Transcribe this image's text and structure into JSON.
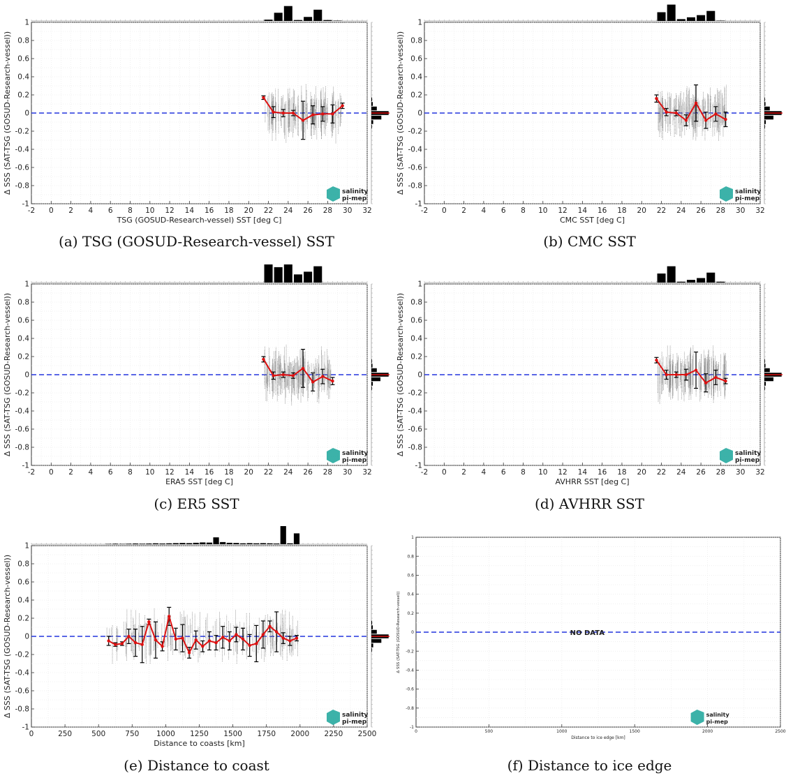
{
  "figures": [
    {
      "caption": "(a) TSG (GOSUD-Research-vessel) SST"
    },
    {
      "caption": "(b) CMC SST"
    },
    {
      "caption": "(c) ER5 SST"
    },
    {
      "caption": "(d) AVHRR SST"
    },
    {
      "caption": "(e) Distance to coast"
    },
    {
      "caption": "(f) Distance to ice edge"
    }
  ],
  "logo": {
    "line1": "salinity",
    "line2": "pi-mep",
    "color": "#1aa59a"
  },
  "colors": {
    "zero_line": "#2233dd",
    "mean_line": "#dd1111",
    "scatter": "#777777",
    "bars": "#000000"
  },
  "chart_data": [
    {
      "type": "scatter",
      "xlabel": "TSG (GOSUD-Research-vessel) SST [deg C]",
      "ylabel": "Δ SSS (SAT-TSG (GOSUD-Research-vessel))",
      "xlim": [
        -2,
        32
      ],
      "ylim": [
        -1,
        1
      ],
      "xticks": [
        -2,
        0,
        2,
        4,
        6,
        8,
        10,
        12,
        14,
        16,
        18,
        20,
        22,
        24,
        26,
        28,
        30,
        32
      ],
      "yticks": [
        -1,
        -0.8,
        -0.6,
        -0.4,
        -0.2,
        0,
        0.2,
        0.4,
        0.6,
        0.8,
        1
      ],
      "scatter_x": [
        21.6,
        29.4
      ],
      "scatter_y": [
        -0.35,
        0.42
      ],
      "mean_x": [
        21.5,
        22.5,
        23.5,
        24.5,
        25.5,
        26.5,
        27.5,
        28.5,
        29.5
      ],
      "mean_y": [
        0.17,
        0.01,
        0.0,
        0.0,
        -0.08,
        -0.02,
        -0.01,
        -0.01,
        0.08
      ],
      "err": [
        0.02,
        0.06,
        0.04,
        0.03,
        0.21,
        0.1,
        0.08,
        0.1,
        0.03
      ],
      "top_hist": [
        0.07,
        0.45,
        0.82,
        0.05,
        0.22,
        0.62,
        0.05,
        0.02
      ],
      "top_hist_start": 22,
      "top_hist_step": 1,
      "side_hist": [
        0.04,
        0.08,
        0.3,
        0.95,
        0.55,
        0.1,
        0.03
      ]
    },
    {
      "type": "scatter",
      "xlabel": "CMC SST [deg C]",
      "ylabel": "Δ SSS (SAT-TSG (GOSUD-Research-vessel))",
      "xlim": [
        -2,
        32
      ],
      "ylim": [
        -1,
        1
      ],
      "xticks": [
        -2,
        0,
        2,
        4,
        6,
        8,
        10,
        12,
        14,
        16,
        18,
        20,
        22,
        24,
        26,
        28,
        30,
        32
      ],
      "yticks": [
        -1,
        -0.8,
        -0.6,
        -0.4,
        -0.2,
        0,
        0.2,
        0.4,
        0.6,
        0.8,
        1
      ],
      "scatter_x": [
        21.6,
        28.6
      ],
      "scatter_y": [
        -0.35,
        0.43
      ],
      "mean_x": [
        21.5,
        22.5,
        23.5,
        24.5,
        25.5,
        26.5,
        27.5,
        28.5
      ],
      "mean_y": [
        0.16,
        0.01,
        0.0,
        -0.08,
        0.11,
        -0.08,
        -0.01,
        -0.07
      ],
      "err": [
        0.04,
        0.04,
        0.03,
        0.06,
        0.2,
        0.09,
        0.08,
        0.08
      ],
      "top_hist": [
        0.48,
        0.9,
        0.1,
        0.2,
        0.32,
        0.55,
        0.02
      ],
      "top_hist_start": 22,
      "top_hist_step": 1,
      "side_hist": [
        0.03,
        0.06,
        0.3,
        0.95,
        0.5,
        0.08,
        0.03
      ]
    },
    {
      "type": "scatter",
      "xlabel": "ERA5 SST [deg C]",
      "ylabel": "Δ SSS (SAT-TSG (GOSUD-Research-vessel))",
      "xlim": [
        -2,
        32
      ],
      "ylim": [
        -1,
        1
      ],
      "xticks": [
        -2,
        0,
        2,
        4,
        6,
        8,
        10,
        12,
        14,
        16,
        18,
        20,
        22,
        24,
        26,
        28,
        30,
        32
      ],
      "yticks": [
        -1,
        -0.8,
        -0.6,
        -0.4,
        -0.2,
        0,
        0.2,
        0.4,
        0.6,
        0.8,
        1
      ],
      "scatter_x": [
        21.6,
        28.4
      ],
      "scatter_y": [
        -0.35,
        0.43
      ],
      "mean_x": [
        21.5,
        22.5,
        23.5,
        24.5,
        25.5,
        26.5,
        27.5,
        28.5
      ],
      "mean_y": [
        0.17,
        -0.01,
        0.0,
        -0.01,
        0.07,
        -0.08,
        -0.02,
        -0.07
      ],
      "err": [
        0.03,
        0.04,
        0.03,
        0.03,
        0.21,
        0.1,
        0.08,
        0.04
      ],
      "top_hist": [
        1.0,
        0.85,
        1.0,
        0.45,
        0.6,
        0.9
      ],
      "top_hist_start": 22,
      "top_hist_step": 1,
      "side_hist": [
        0.03,
        0.06,
        0.3,
        0.95,
        0.5,
        0.08,
        0.03
      ]
    },
    {
      "type": "scatter",
      "xlabel": "AVHRR SST [deg C]",
      "ylabel": "Δ SSS (SAT-TSG (GOSUD-Research-vessel))",
      "xlim": [
        -2,
        32
      ],
      "ylim": [
        -1,
        1
      ],
      "xticks": [
        -2,
        0,
        2,
        4,
        6,
        8,
        10,
        12,
        14,
        16,
        18,
        20,
        22,
        24,
        26,
        28,
        30,
        32
      ],
      "yticks": [
        -1,
        -0.8,
        -0.6,
        -0.4,
        -0.2,
        0,
        0.2,
        0.4,
        0.6,
        0.8,
        1
      ],
      "scatter_x": [
        21.6,
        28.6
      ],
      "scatter_y": [
        -0.36,
        0.43
      ],
      "mean_x": [
        21.5,
        22.5,
        23.5,
        24.5,
        25.5,
        26.5,
        27.5,
        28.5
      ],
      "mean_y": [
        0.16,
        0.0,
        0.0,
        0.0,
        0.05,
        -0.09,
        -0.03,
        -0.07
      ],
      "err": [
        0.03,
        0.05,
        0.03,
        0.06,
        0.2,
        0.1,
        0.08,
        0.03
      ],
      "top_hist": [
        0.5,
        0.9,
        0.05,
        0.15,
        0.25,
        0.55,
        0.05
      ],
      "top_hist_start": 22,
      "top_hist_step": 1,
      "side_hist": [
        0.03,
        0.06,
        0.3,
        0.95,
        0.5,
        0.08,
        0.03
      ]
    },
    {
      "type": "scatter",
      "xlabel": "Distance to coasts [km]",
      "ylabel": "Δ SSS (SAT-TSG (GOSUD-Research-vessel))",
      "xlim": [
        0,
        2500
      ],
      "ylim": [
        -1,
        1
      ],
      "xticks": [
        0,
        250,
        500,
        750,
        1000,
        1250,
        1500,
        1750,
        2000,
        2250,
        2500
      ],
      "yticks": [
        -1,
        -0.8,
        -0.6,
        -0.4,
        -0.2,
        0,
        0.2,
        0.4,
        0.6,
        0.8,
        1
      ],
      "scatter_x": [
        560,
        1990
      ],
      "scatter_y": [
        -0.3,
        0.4
      ],
      "mean_x": [
        575,
        625,
        675,
        725,
        775,
        825,
        875,
        925,
        975,
        1025,
        1075,
        1125,
        1175,
        1225,
        1275,
        1325,
        1375,
        1425,
        1475,
        1525,
        1575,
        1625,
        1675,
        1725,
        1775,
        1825,
        1875,
        1925,
        1975
      ],
      "mean_y": [
        -0.05,
        -0.09,
        -0.08,
        0.0,
        -0.07,
        -0.09,
        0.16,
        -0.04,
        -0.11,
        0.22,
        -0.03,
        -0.02,
        -0.18,
        -0.04,
        -0.11,
        -0.05,
        -0.07,
        -0.01,
        -0.05,
        0.02,
        -0.03,
        -0.1,
        -0.08,
        0.02,
        0.11,
        0.05,
        -0.02,
        -0.05,
        -0.02
      ],
      "err": [
        0.05,
        0.02,
        0.02,
        0.08,
        0.15,
        0.2,
        0.03,
        0.2,
        0.05,
        0.1,
        0.12,
        0.15,
        0.06,
        0.1,
        0.06,
        0.1,
        0.08,
        0.12,
        0.1,
        0.08,
        0.12,
        0.12,
        0.2,
        0.15,
        0.06,
        0.22,
        0.06,
        0.05,
        0.03
      ],
      "top_hist": [
        0.02,
        0.03,
        0.02,
        0.03,
        0.04,
        0.03,
        0.04,
        0.05,
        0.04,
        0.05,
        0.06,
        0.07,
        0.06,
        0.08,
        0.1,
        0.09,
        0.38,
        0.12,
        0.08,
        0.07,
        0.05,
        0.06,
        0.05,
        0.06,
        0.05,
        0.04,
        1.0,
        0.05,
        0.6
      ],
      "top_hist_start": 575,
      "top_hist_step": 50,
      "side_hist": [
        0.04,
        0.08,
        0.3,
        0.95,
        0.55,
        0.1,
        0.03
      ]
    },
    {
      "type": "scatter",
      "xlabel": "Distance to ice edge [km]",
      "ylabel": "Δ SSS (SAT-TSG (GOSUD-Research-vessel))",
      "xlim": [
        0,
        2500
      ],
      "ylim": [
        -1,
        1
      ],
      "xticks": [
        0,
        500,
        1000,
        1500,
        2000,
        2500
      ],
      "yticks": [
        -1,
        -0.8,
        -0.6,
        -0.4,
        -0.2,
        0,
        0.2,
        0.4,
        0.6,
        0.8,
        1
      ],
      "annotation": "NO DATA"
    }
  ]
}
